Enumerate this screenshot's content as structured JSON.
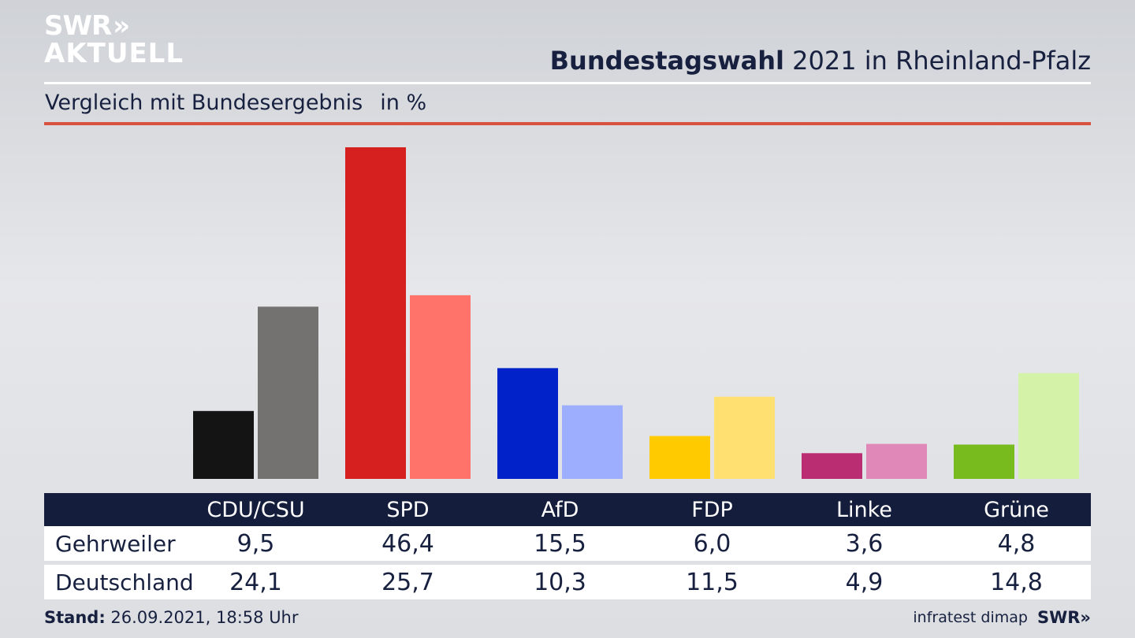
{
  "brand": {
    "line1": "SWR",
    "line2": "AKTUELL",
    "chevrons": "»"
  },
  "header": {
    "title_bold": "Bundestagswahl",
    "title_rest": "2021 in Rheinland-Pfalz"
  },
  "subtitle": {
    "text": "Vergleich mit Bundesergebnis",
    "unit": "in %"
  },
  "colors": {
    "regional": [
      "#141414",
      "#d62020",
      "#0022c8",
      "#ffcb00",
      "#bb2d72",
      "#78bb1e"
    ],
    "national": [
      "#747270",
      "#ff736b",
      "#9eaeff",
      "#ffe070",
      "#e088b8",
      "#d4f2a8"
    ],
    "header_bg": "#141d3b",
    "accent_rule": "#d9513f"
  },
  "chart_data": {
    "type": "bar",
    "categories": [
      "CDU/CSU",
      "SPD",
      "AfD",
      "FDP",
      "Linke",
      "Grüne"
    ],
    "series": [
      {
        "name": "Gehrweiler",
        "values": [
          "9,5",
          "46,4",
          "15,5",
          "6,0",
          "3,6",
          "4,8"
        ]
      },
      {
        "name": "Deutschland",
        "values": [
          "24,1",
          "25,7",
          "10,3",
          "11,5",
          "4,9",
          "14,8"
        ]
      }
    ],
    "ylim": [
      0,
      46.4
    ]
  },
  "footer": {
    "stand_label": "Stand:",
    "stand_value": "26.09.2021, 18:58 Uhr",
    "source": "infratest dimap",
    "logo": "SWR",
    "logo_chevrons": "»"
  }
}
